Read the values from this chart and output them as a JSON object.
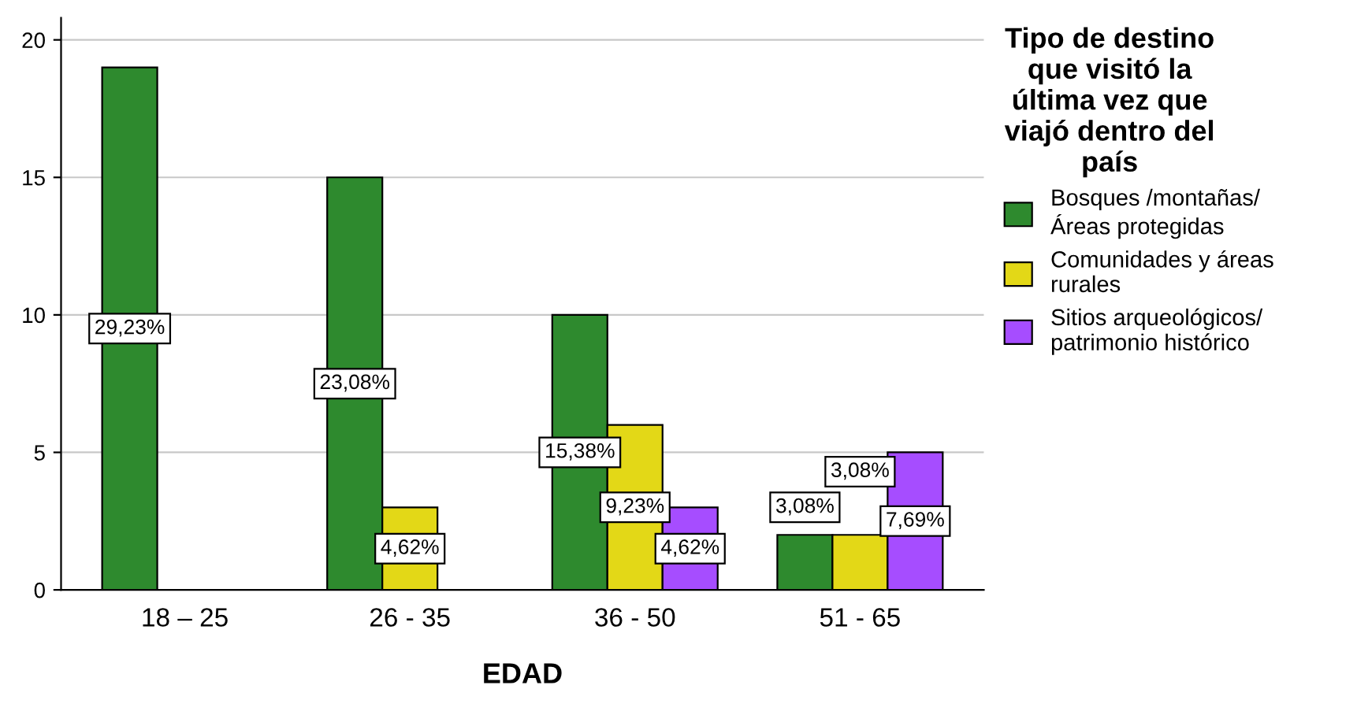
{
  "chart_data": {
    "type": "bar",
    "categories": [
      "18 – 25",
      "26 - 35",
      "36 - 50",
      "51 - 65"
    ],
    "xlabel": "EDAD",
    "legend_title": "Tipo de destino\nque visitó la\núltima vez que\nviajó dentro del\npaís",
    "series": [
      {
        "name": "Bosques /montañas/\nÁreas protegidas",
        "color": "#2e8a2e",
        "values": [
          19,
          15,
          10,
          2
        ]
      },
      {
        "name": "Comunidades y áreas\nrurales",
        "color": "#e3d817",
        "values": [
          null,
          3,
          6,
          2
        ]
      },
      {
        "name": "Sitios arqueológicos/\npatrimonio histórico",
        "color": "#a64dff",
        "values": [
          null,
          null,
          3,
          5
        ]
      }
    ],
    "annotations": [
      "29,23%",
      "23,08%",
      "15,38%",
      "3,08%",
      "4,62%",
      "9,23%",
      "3,08%",
      "4,62%",
      "7,69%"
    ],
    "ylim": [
      0,
      20.8
    ],
    "yticks": [
      0,
      5,
      10,
      15,
      20
    ],
    "grid": "y",
    "legend": "right"
  }
}
